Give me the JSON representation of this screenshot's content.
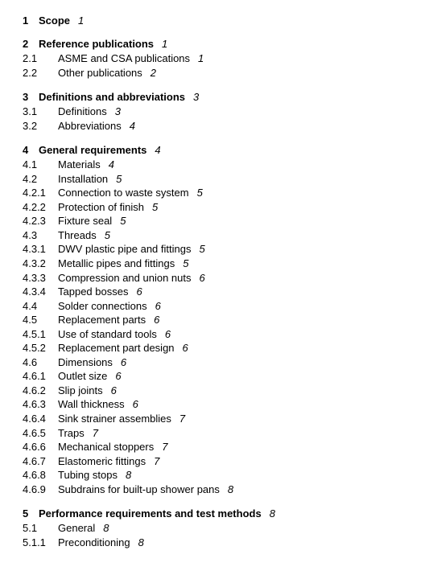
{
  "sections": [
    {
      "num": "1",
      "title": "Scope",
      "page": "1",
      "entries": []
    },
    {
      "num": "2",
      "title": "Reference publications",
      "page": "1",
      "entries": [
        {
          "num": "2.1",
          "title": "ASME and CSA publications",
          "page": "1"
        },
        {
          "num": "2.2",
          "title": "Other publications",
          "page": "2"
        }
      ]
    },
    {
      "num": "3",
      "title": "Definitions and abbreviations",
      "page": "3",
      "entries": [
        {
          "num": "3.1",
          "title": "Definitions",
          "page": "3"
        },
        {
          "num": "3.2",
          "title": "Abbreviations",
          "page": "4"
        }
      ]
    },
    {
      "num": "4",
      "title": "General requirements",
      "page": "4",
      "entries": [
        {
          "num": "4.1",
          "title": "Materials",
          "page": "4"
        },
        {
          "num": "4.2",
          "title": "Installation",
          "page": "5"
        },
        {
          "num": "4.2.1",
          "title": "Connection to waste system",
          "page": "5"
        },
        {
          "num": "4.2.2",
          "title": "Protection of finish",
          "page": "5"
        },
        {
          "num": "4.2.3",
          "title": "Fixture seal",
          "page": "5"
        },
        {
          "num": "4.3",
          "title": "Threads",
          "page": "5"
        },
        {
          "num": "4.3.1",
          "title": "DWV plastic pipe and fittings",
          "page": "5"
        },
        {
          "num": "4.3.2",
          "title": "Metallic pipes and fittings",
          "page": "5"
        },
        {
          "num": "4.3.3",
          "title": "Compression and union nuts",
          "page": "6"
        },
        {
          "num": "4.3.4",
          "title": "Tapped bosses",
          "page": "6"
        },
        {
          "num": "4.4",
          "title": "Solder connections",
          "page": "6"
        },
        {
          "num": "4.5",
          "title": "Replacement parts",
          "page": "6"
        },
        {
          "num": "4.5.1",
          "title": "Use of standard tools",
          "page": "6"
        },
        {
          "num": "4.5.2",
          "title": "Replacement part design",
          "page": "6"
        },
        {
          "num": "4.6",
          "title": "Dimensions",
          "page": "6"
        },
        {
          "num": "4.6.1",
          "title": "Outlet size",
          "page": "6"
        },
        {
          "num": "4.6.2",
          "title": "Slip joints",
          "page": "6"
        },
        {
          "num": "4.6.3",
          "title": "Wall thickness",
          "page": "6"
        },
        {
          "num": "4.6.4",
          "title": "Sink strainer assemblies",
          "page": "7"
        },
        {
          "num": "4.6.5",
          "title": "Traps",
          "page": "7"
        },
        {
          "num": "4.6.6",
          "title": "Mechanical stoppers",
          "page": "7"
        },
        {
          "num": "4.6.7",
          "title": "Elastomeric fittings",
          "page": "7"
        },
        {
          "num": "4.6.8",
          "title": "Tubing stops",
          "page": "8"
        },
        {
          "num": "4.6.9",
          "title": "Subdrains for built-up shower pans",
          "page": "8"
        }
      ]
    },
    {
      "num": "5",
      "title": "Performance requirements and test methods",
      "page": "8",
      "entries": [
        {
          "num": "5.1",
          "title": "General",
          "page": "8"
        },
        {
          "num": "5.1.1",
          "title": "Preconditioning",
          "page": "8"
        }
      ]
    }
  ]
}
